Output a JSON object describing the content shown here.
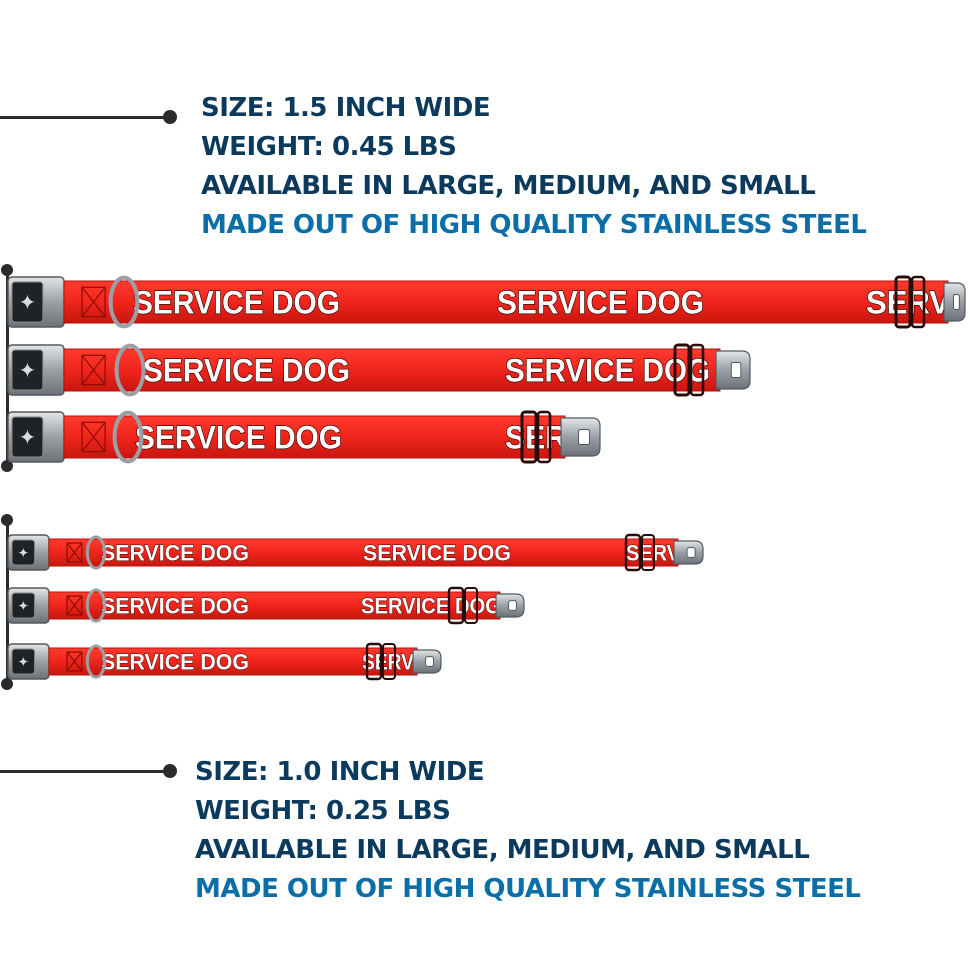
{
  "spec_top": {
    "size": "SIZE: 1.5 INCH WIDE",
    "weight": "WEIGHT: 0.45 LBS",
    "availability": "AVAILABLE IN LARGE, MEDIUM, AND SMALL",
    "material": "MADE OUT OF HIGH QUALITY STAINLESS STEEL"
  },
  "spec_bottom": {
    "size": "SIZE: 1.0 INCH WIDE",
    "weight": "WEIGHT: 0.25 LBS",
    "availability": "AVAILABLE IN LARGE, MEDIUM, AND SMALL",
    "material": "MADE OUT OF HIGH QUALITY STAINLESS STEEL"
  },
  "collar_label": "SERVICE DOG",
  "colors": {
    "collar_red": "#f0251c",
    "collar_edge": "#b5120c",
    "text_dark": "#0c3a5c",
    "text_accent": "#0a6ea8",
    "metal": "#a8adb2",
    "line": "#2b2b2b"
  },
  "collars": [
    {
      "group": "1.5 inch",
      "size": "large",
      "label_count": 3,
      "last_label_text": "SERV"
    },
    {
      "group": "1.5 inch",
      "size": "medium",
      "label_count": 2,
      "last_label_text": "SERVICE DOG"
    },
    {
      "group": "1.5 inch",
      "size": "small",
      "label_count": 2,
      "last_label_text": "SER"
    },
    {
      "group": "1.0 inch",
      "size": "large",
      "label_count": 3,
      "last_label_text": "SERV"
    },
    {
      "group": "1.0 inch",
      "size": "medium",
      "label_count": 2,
      "last_label_text": "SERVICE DOG"
    },
    {
      "group": "1.0 inch",
      "size": "small",
      "label_count": 2,
      "last_label_text": "SERV"
    }
  ]
}
